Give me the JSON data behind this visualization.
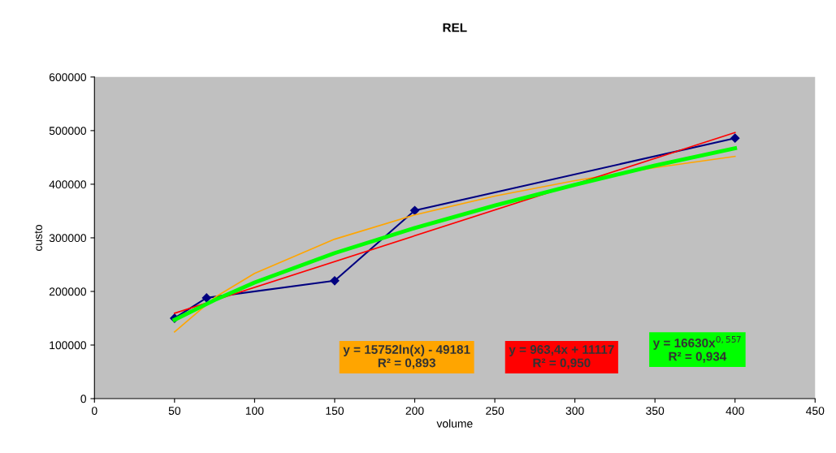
{
  "chart_data": {
    "type": "line",
    "title": "REL",
    "xlabel": "volume",
    "ylabel": "custo",
    "xlim": [
      0,
      450
    ],
    "ylim": [
      0,
      600000
    ],
    "xticks": [
      0,
      50,
      100,
      150,
      200,
      250,
      300,
      350,
      400,
      450
    ],
    "yticks": [
      0,
      100000,
      200000,
      300000,
      400000,
      500000,
      600000
    ],
    "grid": false,
    "legend": false,
    "series": [
      {
        "color": "#000080",
        "marker": "diamond",
        "x": [
          50,
          70,
          150,
          200,
          400
        ],
        "values": [
          150000,
          188000,
          220000,
          351000,
          486000
        ]
      },
      {
        "color": "#ffa500",
        "marker": "none",
        "x": [
          50,
          75,
          100,
          150,
          200,
          250,
          300,
          350,
          400
        ],
        "values": [
          124400,
          188500,
          233600,
          297500,
          342800,
          378000,
          406700,
          431000,
          452000
        ]
      },
      {
        "color": "#ff0000",
        "marker": "none",
        "x": [
          50,
          400
        ],
        "values": [
          159300,
          496500
        ]
      },
      {
        "color": "#00ff00",
        "marker": "none",
        "x": [
          50,
          75,
          100,
          150,
          200,
          250,
          300,
          350,
          400
        ],
        "values": [
          147000,
          183900,
          216700,
          271600,
          318300,
          360400,
          399000,
          435000,
          467000
        ]
      }
    ],
    "annotations": [
      "y = 15752ln(x) - 49181\nR² = 0,893",
      "y = 963,4x + 11117\nR² = 0,950",
      "y = 16630x$^{0,557}$\nR² = 0,934"
    ]
  }
}
